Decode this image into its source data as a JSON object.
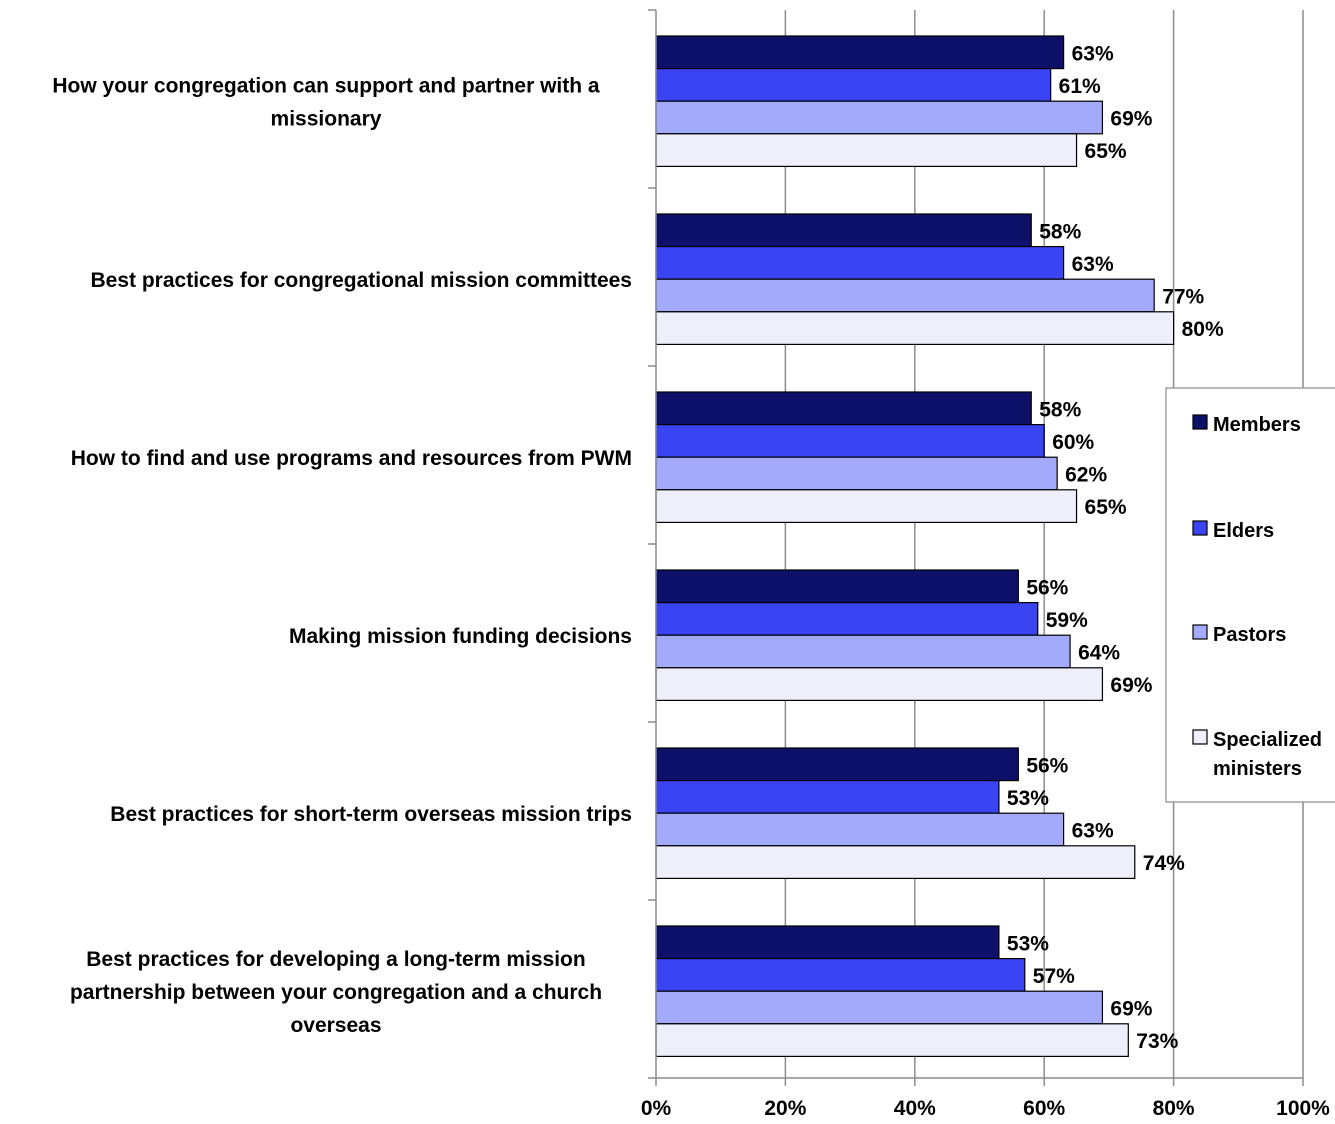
{
  "chart_data": {
    "type": "bar",
    "orientation": "horizontal",
    "categories": [
      [
        "How your congregation can support and partner with a",
        "missionary"
      ],
      [
        "Best practices for congregational mission committees"
      ],
      [
        "How to find and use programs and resources from PWM"
      ],
      [
        "Making mission funding decisions"
      ],
      [
        "Best practices for short-term overseas mission trips"
      ],
      [
        "Best practices for developing a long-term mission",
        "partnership between your congregation and a church",
        "overseas"
      ]
    ],
    "series": [
      {
        "name": "Members",
        "color": "#0d1068",
        "values": [
          63,
          58,
          58,
          56,
          56,
          53
        ],
        "labels": [
          "63%",
          "58%",
          "58%",
          "56%",
          "56%",
          "53%"
        ]
      },
      {
        "name": "Elders",
        "color": "#3a44f2",
        "values": [
          61,
          63,
          60,
          59,
          53,
          57
        ],
        "labels": [
          "61%",
          "63%",
          "60%",
          "59%",
          "53%",
          "57%"
        ]
      },
      {
        "name": "Pastors",
        "color": "#a3a9fb",
        "values": [
          69,
          77,
          62,
          64,
          63,
          69
        ],
        "labels": [
          "69%",
          "77%",
          "62%",
          "64%",
          "63%",
          "69%"
        ]
      },
      {
        "name": [
          "Specialized",
          "ministers"
        ],
        "color": "#eeeffa",
        "values": [
          65,
          80,
          65,
          69,
          74,
          73
        ],
        "labels": [
          "65%",
          "80%",
          "65%",
          "69%",
          "74%",
          "73%"
        ]
      }
    ],
    "xlim": [
      0,
      100
    ],
    "ticks": [
      0,
      20,
      40,
      60,
      80,
      100
    ],
    "tick_labels": [
      "0%",
      "20%",
      "40%",
      "60%",
      "80%",
      "100%"
    ],
    "grid": "vertical",
    "legend_position": "right"
  }
}
